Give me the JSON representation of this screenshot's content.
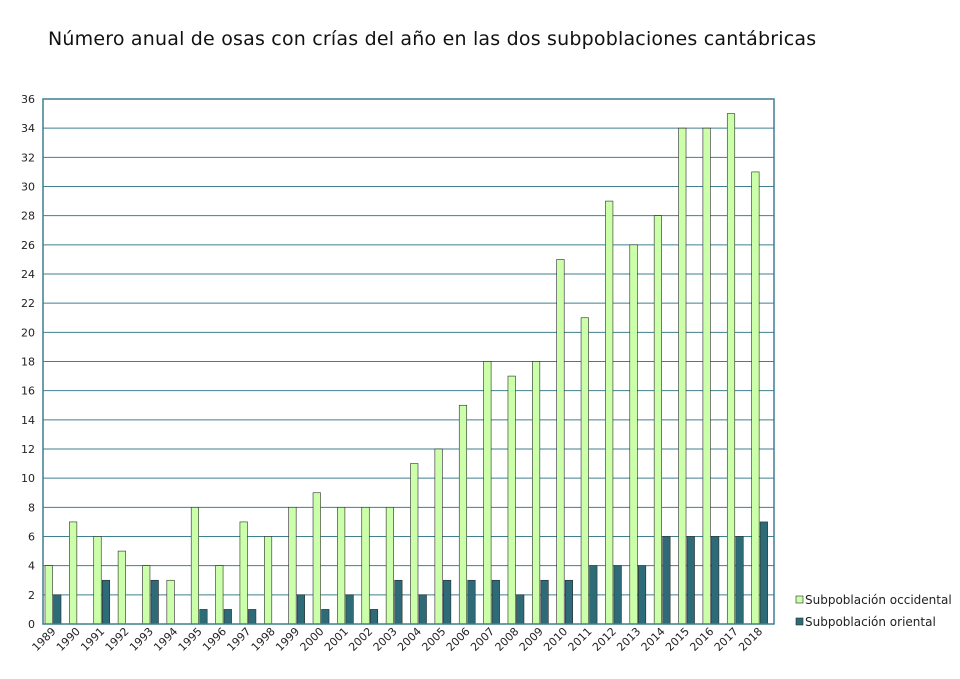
{
  "colors": {
    "occidental": "#ccffaa",
    "oriental": "#2e6b78",
    "frame": "#3f7f8f",
    "grid": "#3f7f8f",
    "bar_stroke": "#2b2b2b"
  },
  "chart_data": {
    "type": "bar",
    "title": "Número anual de osas con crías del año en las dos subpoblaciones cantábricas",
    "xlabel": "",
    "ylabel": "",
    "ylim": [
      0,
      36
    ],
    "ytick_step": 2,
    "grid": true,
    "legend_position": "right",
    "categories": [
      "1989",
      "1990",
      "1991",
      "1992",
      "1993",
      "1994",
      "1995",
      "1996",
      "1997",
      "1998",
      "1999",
      "2000",
      "2001",
      "2002",
      "2003",
      "2004",
      "2005",
      "2006",
      "2007",
      "2008",
      "2009",
      "2010",
      "2011",
      "2012",
      "2013",
      "2014",
      "2015",
      "2016",
      "2017",
      "2018"
    ],
    "series": [
      {
        "name": "Subpoblación occidental",
        "values": [
          4,
          7,
          6,
          5,
          4,
          3,
          8,
          4,
          7,
          6,
          8,
          9,
          8,
          8,
          8,
          11,
          12,
          15,
          18,
          17,
          18,
          25,
          21,
          29,
          26,
          28,
          34,
          34,
          35,
          31
        ]
      },
      {
        "name": "Subpoblación oriental",
        "values": [
          2,
          0,
          3,
          0,
          3,
          0,
          1,
          1,
          1,
          0,
          2,
          1,
          2,
          1,
          3,
          2,
          3,
          3,
          3,
          2,
          3,
          3,
          4,
          4,
          4,
          6,
          6,
          6,
          6,
          7
        ]
      }
    ]
  }
}
